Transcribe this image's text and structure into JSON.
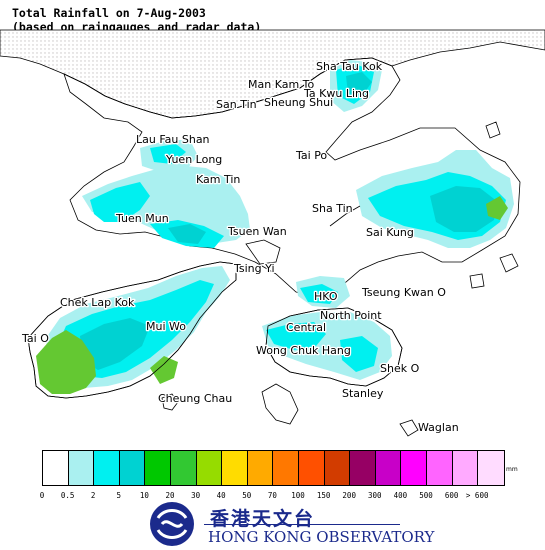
{
  "title": {
    "line1": "Total Rainfall on 7-Aug-2003",
    "line2": "(based on raingauges and radar data)"
  },
  "places": [
    "Sha Tau Kok",
    "Man Kam To",
    "Ta Kwu Ling",
    "San Tin",
    "Sheung Shui",
    "Lau Fau Shan",
    "Yuen Long",
    "Tai Po",
    "Kam Tin",
    "Sha Tin",
    "Tuen Mun",
    "Tsuen Wan",
    "Sai Kung",
    "Tsing Yi",
    "Chek Lap Kok",
    "HKO",
    "Tseung Kwan O",
    "Mui Wo",
    "North Point",
    "Central",
    "Tai O",
    "Wong Chuk Hang",
    "Shek O",
    "Cheung Chau",
    "Stanley",
    "Waglan"
  ],
  "legend": {
    "unit": "mm",
    "colors": [
      "#ffffff",
      "#aaf0f0",
      "#00f0f0",
      "#00d2d2",
      "#00c800",
      "#32c832",
      "#96dc00",
      "#ffdc00",
      "#ffaa00",
      "#ff7800",
      "#ff5000",
      "#d23c00",
      "#960064",
      "#c800c8",
      "#ff00ff",
      "#ff64ff",
      "#ffaaff",
      "#ffdcff"
    ],
    "ticks": [
      "0",
      "0.5",
      "2",
      "5",
      "10",
      "20",
      "30",
      "40",
      "50",
      "70",
      "100",
      "150",
      "200",
      "300",
      "400",
      "500",
      "600",
      "> 600"
    ]
  },
  "colors": {
    "land": "#ffffff",
    "mainland": "#f0eeee",
    "very_light_rain": "#aaf0f0",
    "light_rain": "#00f0f0",
    "moderate_rain": "#00d2d2",
    "green_rain": "#64c832",
    "logo_blue": "#1b2a8c"
  },
  "logo": {
    "chinese": "香港天文台",
    "english": "HONG KONG OBSERVATORY"
  }
}
